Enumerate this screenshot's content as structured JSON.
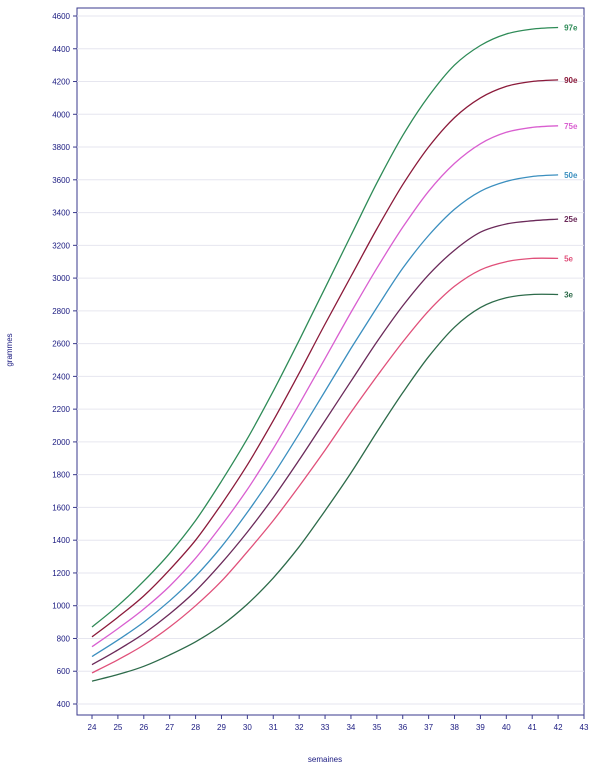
{
  "chart_data": {
    "type": "line",
    "title": "",
    "xlabel": "semaines",
    "ylabel": "grammes",
    "xlim": [
      24,
      43
    ],
    "ylim": [
      400,
      4600
    ],
    "x_ticks": [
      24,
      25,
      26,
      27,
      28,
      29,
      30,
      31,
      32,
      33,
      34,
      35,
      36,
      37,
      38,
      39,
      40,
      41,
      42,
      43
    ],
    "y_ticks": [
      400,
      600,
      800,
      1000,
      1200,
      1400,
      1600,
      1800,
      2000,
      2200,
      2400,
      2600,
      2800,
      3000,
      3200,
      3400,
      3600,
      3800,
      4000,
      4200,
      4400,
      4600
    ],
    "grid": true,
    "x": [
      24,
      25,
      26,
      27,
      28,
      29,
      30,
      31,
      32,
      33,
      34,
      35,
      36,
      37,
      38,
      39,
      40,
      41,
      42
    ],
    "series": [
      {
        "name": "97e",
        "color": "#2e8b57",
        "values": [
          870,
          1000,
          1150,
          1320,
          1520,
          1760,
          2020,
          2310,
          2620,
          2940,
          3260,
          3580,
          3870,
          4110,
          4300,
          4420,
          4490,
          4520,
          4530
        ]
      },
      {
        "name": "90e",
        "color": "#8b1a3a",
        "values": [
          810,
          930,
          1060,
          1220,
          1400,
          1620,
          1860,
          2130,
          2420,
          2720,
          3010,
          3300,
          3570,
          3800,
          3980,
          4100,
          4170,
          4200,
          4210
        ]
      },
      {
        "name": "75e",
        "color": "#d95fd0",
        "values": [
          750,
          860,
          980,
          1120,
          1290,
          1490,
          1710,
          1960,
          2230,
          2510,
          2790,
          3060,
          3310,
          3530,
          3700,
          3820,
          3890,
          3920,
          3930
        ]
      },
      {
        "name": "50e",
        "color": "#3b8fbf",
        "values": [
          690,
          790,
          900,
          1030,
          1180,
          1360,
          1570,
          1800,
          2050,
          2310,
          2570,
          2820,
          3060,
          3260,
          3420,
          3530,
          3590,
          3620,
          3630
        ]
      },
      {
        "name": "25e",
        "color": "#6b2a5a",
        "values": [
          640,
          730,
          830,
          950,
          1090,
          1260,
          1450,
          1660,
          1890,
          2130,
          2370,
          2610,
          2830,
          3020,
          3170,
          3280,
          3330,
          3350,
          3360
        ]
      },
      {
        "name": "5e",
        "color": "#e0507a",
        "values": [
          590,
          670,
          760,
          870,
          1000,
          1150,
          1330,
          1520,
          1730,
          1950,
          2180,
          2400,
          2610,
          2800,
          2950,
          3050,
          3100,
          3120,
          3120
        ]
      },
      {
        "name": "3e",
        "color": "#2d6b4a",
        "values": [
          540,
          580,
          630,
          700,
          780,
          880,
          1010,
          1170,
          1360,
          1580,
          1810,
          2060,
          2300,
          2520,
          2700,
          2820,
          2880,
          2900,
          2900
        ]
      }
    ]
  }
}
